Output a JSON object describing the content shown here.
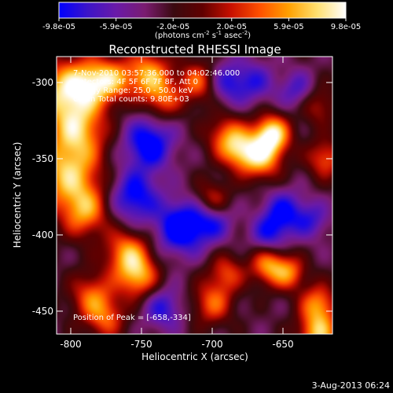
{
  "chart_data": {
    "type": "heatmap",
    "title": "Reconstructed RHESSI Image",
    "xlabel": "Heliocentric X (arcsec)",
    "ylabel": "Heliocentric Y (arcsec)",
    "xlim": [
      -810,
      -615
    ],
    "ylim": [
      -465,
      -283
    ],
    "x_ticks": [
      -800,
      -750,
      -700,
      -650
    ],
    "y_ticks": [
      -300,
      -350,
      -400,
      -450
    ],
    "colorbar": {
      "tick_labels": [
        "-9.8e-05",
        "-5.9e-05",
        "-2.0e-05",
        "2.0e-05",
        "5.9e-05",
        "9.8e-05"
      ],
      "tick_values": [
        -9.8e-05,
        -5.9e-05,
        -2e-05,
        2e-05,
        5.9e-05,
        9.8e-05
      ],
      "range": [
        -9.8e-05,
        9.8e-05
      ],
      "label": "(photons cm^-2 s^-1 asec^-2)",
      "palette": [
        "#0000ff",
        "#3c14c8",
        "#6a1aa8",
        "#7a1c70",
        "#3a0a10",
        "#600000",
        "#c81000",
        "#ff5000",
        "#ffa000",
        "#ffe070",
        "#ffffff"
      ]
    },
    "annotations": [
      "7-Nov-2010 03:57:36.000 to 04:02:46.000",
      "Detectors: 4F 5F 6F 7F 8F, Att 0",
      "Energy Range: 25.0 - 50.0 keV",
      "Clean     Total counts: 9.80E+03"
    ],
    "peak_label": "Position of Peak = [-658,-334]",
    "peak": [
      -658,
      -334
    ],
    "sources": [
      {
        "x": -805,
        "y": -305,
        "amp": 1.0,
        "w": 14
      },
      {
        "x": -795,
        "y": -330,
        "amp": 0.9,
        "w": 14
      },
      {
        "x": -802,
        "y": -360,
        "amp": 1.0,
        "w": 16
      },
      {
        "x": -790,
        "y": -385,
        "amp": 0.8,
        "w": 12
      },
      {
        "x": -785,
        "y": -300,
        "amp": 0.8,
        "w": 11
      },
      {
        "x": -770,
        "y": -298,
        "amp": 0.7,
        "w": 10
      },
      {
        "x": -745,
        "y": -295,
        "amp": 0.95,
        "w": 11
      },
      {
        "x": -735,
        "y": -312,
        "amp": 0.6,
        "w": 9
      },
      {
        "x": -710,
        "y": -300,
        "amp": 0.75,
        "w": 10
      },
      {
        "x": -690,
        "y": -335,
        "amp": 0.7,
        "w": 10
      },
      {
        "x": -658,
        "y": -334,
        "amp": 1.25,
        "w": 9
      },
      {
        "x": -665,
        "y": -350,
        "amp": 0.9,
        "w": 10
      },
      {
        "x": -680,
        "y": -345,
        "amp": 0.8,
        "w": 9
      },
      {
        "x": -700,
        "y": -378,
        "amp": 0.7,
        "w": 9
      },
      {
        "x": -760,
        "y": -412,
        "amp": 0.9,
        "w": 11
      },
      {
        "x": -752,
        "y": -428,
        "amp": 0.85,
        "w": 10
      },
      {
        "x": -785,
        "y": -440,
        "amp": 0.7,
        "w": 11
      },
      {
        "x": -775,
        "y": -455,
        "amp": 0.6,
        "w": 10
      },
      {
        "x": -700,
        "y": -445,
        "amp": 0.7,
        "w": 10
      },
      {
        "x": -690,
        "y": -425,
        "amp": 0.6,
        "w": 9
      },
      {
        "x": -660,
        "y": -420,
        "amp": 0.9,
        "w": 9
      },
      {
        "x": -645,
        "y": -425,
        "amp": 0.7,
        "w": 8
      },
      {
        "x": -625,
        "y": -445,
        "amp": 0.8,
        "w": 9
      },
      {
        "x": -625,
        "y": -465,
        "amp": 1.0,
        "w": 10
      },
      {
        "x": -620,
        "y": -350,
        "amp": 0.7,
        "w": 9
      },
      {
        "x": -625,
        "y": -315,
        "amp": 0.5,
        "w": 9
      },
      {
        "x": -745,
        "y": -340,
        "amp": -0.9,
        "w": 12
      },
      {
        "x": -755,
        "y": -375,
        "amp": -0.8,
        "w": 12
      },
      {
        "x": -722,
        "y": -395,
        "amp": -1.0,
        "w": 12
      },
      {
        "x": -700,
        "y": -390,
        "amp": -0.7,
        "w": 10
      },
      {
        "x": -690,
        "y": -300,
        "amp": -0.6,
        "w": 10
      },
      {
        "x": -670,
        "y": -300,
        "amp": -0.5,
        "w": 10
      },
      {
        "x": -650,
        "y": -385,
        "amp": -0.7,
        "w": 10
      },
      {
        "x": -660,
        "y": -400,
        "amp": -0.6,
        "w": 9
      },
      {
        "x": -735,
        "y": -448,
        "amp": -0.6,
        "w": 10
      },
      {
        "x": -630,
        "y": -390,
        "amp": -0.5,
        "w": 9
      },
      {
        "x": -640,
        "y": -305,
        "amp": -0.5,
        "w": 9
      }
    ],
    "background": -0.25
  },
  "footer": {
    "timestamp": "3-Aug-2013 06:24"
  }
}
